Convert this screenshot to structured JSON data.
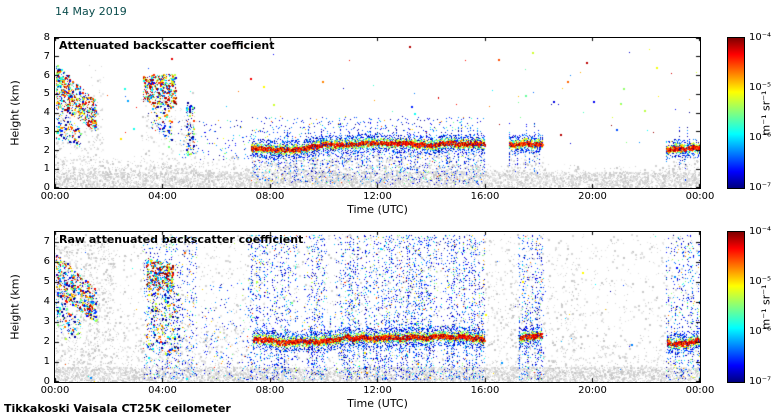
{
  "figure": {
    "date": "14 May 2019",
    "footer": "Tikkakoski Vaisala CT25K ceilometer",
    "colors": {
      "date_text": "#0b4d4d",
      "background": "#ffffff",
      "axes": "#000000"
    }
  },
  "chart_data": [
    {
      "type": "heatmap",
      "panel": "top",
      "title": "Attenuated backscatter coefficient",
      "xlabel": "Time (UTC)",
      "ylabel": "Height (km)",
      "x_range_hours": [
        0,
        24
      ],
      "x_ticks": [
        {
          "hour": 0,
          "label": "00:00"
        },
        {
          "hour": 4,
          "label": "04:00"
        },
        {
          "hour": 8,
          "label": "08:00"
        },
        {
          "hour": 12,
          "label": "12:00"
        },
        {
          "hour": 16,
          "label": "16:00"
        },
        {
          "hour": 20,
          "label": "20:00"
        },
        {
          "hour": 24,
          "label": "00:00"
        }
      ],
      "y_range_km": [
        0,
        8
      ],
      "y_ticks": [
        "0",
        "1",
        "2",
        "3",
        "4",
        "5",
        "6",
        "7",
        "8"
      ],
      "grid": false,
      "colormap": "jet",
      "colorbar": {
        "label": "m⁻¹ sr⁻¹",
        "scale": "log10",
        "tick_labels": [
          "10⁻⁴",
          "10⁻⁵",
          "10⁻⁶",
          "10⁻⁷"
        ],
        "range_min": "10⁻⁷",
        "range_max": "10⁻⁴"
      },
      "description": "Gray boundary-layer aerosol below ~1.5 km all day; descending cloud/virga 00:00-01:30 from ~6.5 down to 3 km; strong echo 03:20-04:30 at 4.5-6 km; persistent stratocumulus cloud base ~2.1 km 07:20-16:00, 16:55-18:10 and 22:45-24:00; sparse high specks.",
      "features": [
        {
          "kind": "haze",
          "t0": 0,
          "t1": 24,
          "h0": 0,
          "h1": 0.85,
          "density": 0.55
        },
        {
          "kind": "haze",
          "t0": 0,
          "t1": 6.8,
          "h0": 0.85,
          "h1": 1.7,
          "density": 0.2,
          "fade": true
        },
        {
          "kind": "haze",
          "t0": 6.8,
          "t1": 19,
          "h0": 0.85,
          "h1": 1.3,
          "density": 0.14,
          "fade": true
        },
        {
          "kind": "haze",
          "t0": 19,
          "t1": 24,
          "h0": 0.85,
          "h1": 1.25,
          "density": 0.1,
          "fade": true
        },
        {
          "kind": "haze",
          "t0": 0,
          "t1": 1.8,
          "h0": 0.8,
          "h1": 6.6,
          "density": 0.09,
          "fade": true
        },
        {
          "kind": "haze",
          "t0": 3.2,
          "t1": 5.3,
          "h0": 0.8,
          "h1": 5.2,
          "density": 0.07,
          "fade": true
        },
        {
          "kind": "haze",
          "t0": 7.3,
          "t1": 16,
          "h0": 0.8,
          "h1": 1.9,
          "density": 0.12
        },
        {
          "kind": "haze",
          "t0": 16.9,
          "t1": 18.2,
          "h0": 0.8,
          "h1": 2.0,
          "density": 0.1
        },
        {
          "kind": "haze",
          "t0": 22.8,
          "t1": 24,
          "h0": 0.8,
          "h1": 1.9,
          "density": 0.1
        },
        {
          "kind": "patch",
          "t0": 0.05,
          "t1": 1.55,
          "top0": 6.6,
          "top1": 4.6,
          "bot0": 4.4,
          "bot1": 3.0,
          "density": 0.5,
          "bias": 0.55
        },
        {
          "kind": "patch",
          "t0": 0.05,
          "t1": 0.95,
          "top0": 4.4,
          "top1": 3.2,
          "bot0": 2.6,
          "bot1": 2.2,
          "density": 0.22,
          "bias": 0.32
        },
        {
          "kind": "patch",
          "t0": 3.3,
          "t1": 4.5,
          "top0": 5.95,
          "top1": 6.1,
          "bot0": 4.6,
          "bot1": 4.3,
          "density": 0.6,
          "bias": 0.62
        },
        {
          "kind": "patch",
          "t0": 3.6,
          "t1": 4.35,
          "top0": 4.6,
          "top1": 4.4,
          "bot0": 3.2,
          "bot1": 2.4,
          "density": 0.16,
          "bias": 0.3
        },
        {
          "kind": "patch",
          "t0": 4.9,
          "t1": 5.2,
          "top0": 4.6,
          "top1": 4.4,
          "bot0": 1.8,
          "bot1": 1.8,
          "density": 0.22,
          "bias": 0.3
        },
        {
          "kind": "noisecols",
          "t0": 4.6,
          "t1": 7.3,
          "h0": 1.5,
          "h1": 3.6,
          "density": 0.03
        },
        {
          "kind": "noisecols",
          "t0": 7.3,
          "t1": 16,
          "h0": 2.4,
          "h1": 3.8,
          "density": 0.05
        },
        {
          "kind": "noisecols",
          "t0": 7.3,
          "t1": 16,
          "h0": 0.2,
          "h1": 1.9,
          "density": 0.09
        },
        {
          "kind": "cloud",
          "t0": 7.3,
          "t1": 16.0,
          "h": 2.15,
          "jitter": 0.25
        },
        {
          "kind": "cloud",
          "t0": 16.9,
          "t1": 18.15,
          "h": 2.3,
          "jitter": 0.15
        },
        {
          "kind": "cloud",
          "t0": 22.75,
          "t1": 24,
          "h": 2.0,
          "jitter": 0.18
        },
        {
          "kind": "specks",
          "n": 90,
          "t0": 1.8,
          "t1": 24,
          "h0": 2.2,
          "h1": 7.7,
          "vmax": 1
        },
        {
          "kind": "points",
          "pts": [
            [
              13.2,
              7.55,
              0.95,
              2
            ],
            [
              16.5,
              6.85,
              0.8,
              2
            ],
            [
              4.35,
              6.9,
              0.9,
              2
            ],
            [
              2.6,
              5.3,
              0.4,
              2
            ],
            [
              20.9,
              3.1,
              0.2,
              2
            ]
          ]
        }
      ]
    },
    {
      "type": "heatmap",
      "panel": "bottom",
      "title": "Raw attenuated backscatter coefficient",
      "xlabel": "Time (UTC)",
      "ylabel": "Height (km)",
      "x_range_hours": [
        0,
        24
      ],
      "x_ticks": [
        {
          "hour": 0,
          "label": "00:00"
        },
        {
          "hour": 4,
          "label": "04:00"
        },
        {
          "hour": 8,
          "label": "08:00"
        },
        {
          "hour": 12,
          "label": "12:00"
        },
        {
          "hour": 16,
          "label": "16:00"
        },
        {
          "hour": 20,
          "label": "20:00"
        },
        {
          "hour": 24,
          "label": "00:00"
        }
      ],
      "y_range_km": [
        0,
        7.5
      ],
      "y_ticks": [
        "0",
        "1",
        "2",
        "3",
        "4",
        "5",
        "6",
        "7"
      ],
      "grid": false,
      "colormap": "jet",
      "colorbar": {
        "label": "m⁻¹ sr⁻¹",
        "scale": "log10",
        "tick_labels": [
          "10⁻⁴",
          "10⁻⁵",
          "10⁻⁶",
          "10⁻⁷"
        ],
        "range_min": "10⁻⁷",
        "range_max": "10⁻⁴"
      },
      "description": "Raw signal with full-depth blue noise columns during cloudy/attenuating periods 03:20-05:20, 07:10-09:00, 09:20-10:10, 10:25-16:00, 17:15-18:10 and 22:45-24:00; cloud base line ~2.1 km; strong echo 03:25-04:25 at 4.5-6.2 km; descending echo 00:00-01:30; light gray speckle background.",
      "features": [
        {
          "kind": "haze",
          "t0": 0,
          "t1": 24,
          "h0": 0,
          "h1": 0.75,
          "density": 0.5
        },
        {
          "kind": "haze",
          "t0": 0,
          "t1": 24,
          "h0": 0.7,
          "h1": 7.4,
          "density": 0.03
        },
        {
          "kind": "haze",
          "t0": 0,
          "t1": 2.2,
          "h0": 0.7,
          "h1": 7.2,
          "density": 0.1
        },
        {
          "kind": "haze",
          "t0": 2.2,
          "t1": 7.2,
          "h0": 0.7,
          "h1": 3.4,
          "density": 0.08,
          "fade": true
        },
        {
          "kind": "haze",
          "t0": 16.0,
          "t1": 19.5,
          "h0": 0.7,
          "h1": 6.5,
          "density": 0.06,
          "fade": true
        },
        {
          "kind": "haze",
          "t0": 19.5,
          "t1": 22.8,
          "h0": 0.7,
          "h1": 2.2,
          "density": 0.06,
          "fade": true
        },
        {
          "kind": "patch",
          "t0": 0.05,
          "t1": 1.55,
          "top0": 6.4,
          "top1": 4.6,
          "bot0": 4.3,
          "bot1": 3.0,
          "density": 0.42,
          "bias": 0.5
        },
        {
          "kind": "patch",
          "t0": 0.05,
          "t1": 0.95,
          "top0": 4.3,
          "top1": 3.2,
          "bot0": 2.5,
          "bot1": 2.2,
          "density": 0.18,
          "bias": 0.3
        },
        {
          "kind": "patch",
          "t0": 3.4,
          "t1": 4.4,
          "top0": 6.2,
          "top1": 5.9,
          "bot0": 4.8,
          "bot1": 4.5,
          "density": 0.7,
          "bias": 0.68
        },
        {
          "kind": "patch",
          "t0": 3.4,
          "t1": 4.6,
          "top0": 4.8,
          "top1": 4.5,
          "bot0": 1.5,
          "bot1": 1.3,
          "density": 0.15,
          "bias": 0.3
        },
        {
          "kind": "noisecols",
          "t0": 3.3,
          "t1": 5.3,
          "h0": 0.1,
          "h1": 7.3,
          "density": 0.09
        },
        {
          "kind": "noisecols",
          "t0": 5.5,
          "t1": 7.2,
          "h0": 0.1,
          "h1": 5.0,
          "density": 0.035
        },
        {
          "kind": "noisecols",
          "t0": 7.2,
          "t1": 9.05,
          "h0": 0.1,
          "h1": 7.35,
          "density": 0.16
        },
        {
          "kind": "noisecols",
          "t0": 9.3,
          "t1": 10.15,
          "h0": 0.1,
          "h1": 7.35,
          "density": 0.14
        },
        {
          "kind": "noisecols",
          "t0": 10.4,
          "t1": 16.0,
          "h0": 0.1,
          "h1": 7.35,
          "density": 0.16
        },
        {
          "kind": "noisecols",
          "t0": 17.25,
          "t1": 18.2,
          "h0": 0.1,
          "h1": 7.35,
          "density": 0.14
        },
        {
          "kind": "noisecols",
          "t0": 22.75,
          "t1": 24,
          "h0": 0.1,
          "h1": 7.35,
          "density": 0.12
        },
        {
          "kind": "cloud",
          "t0": 7.4,
          "t1": 16.0,
          "h": 2.1,
          "jitter": 0.2
        },
        {
          "kind": "cloud",
          "t0": 17.3,
          "t1": 18.15,
          "h": 2.3,
          "jitter": 0.15
        },
        {
          "kind": "cloud",
          "t0": 22.8,
          "t1": 24,
          "h": 2.0,
          "jitter": 0.15
        },
        {
          "kind": "specks",
          "n": 80,
          "t0": 0,
          "t1": 24,
          "h0": 0,
          "h1": 7.4,
          "vmax": 0.8
        }
      ]
    }
  ]
}
